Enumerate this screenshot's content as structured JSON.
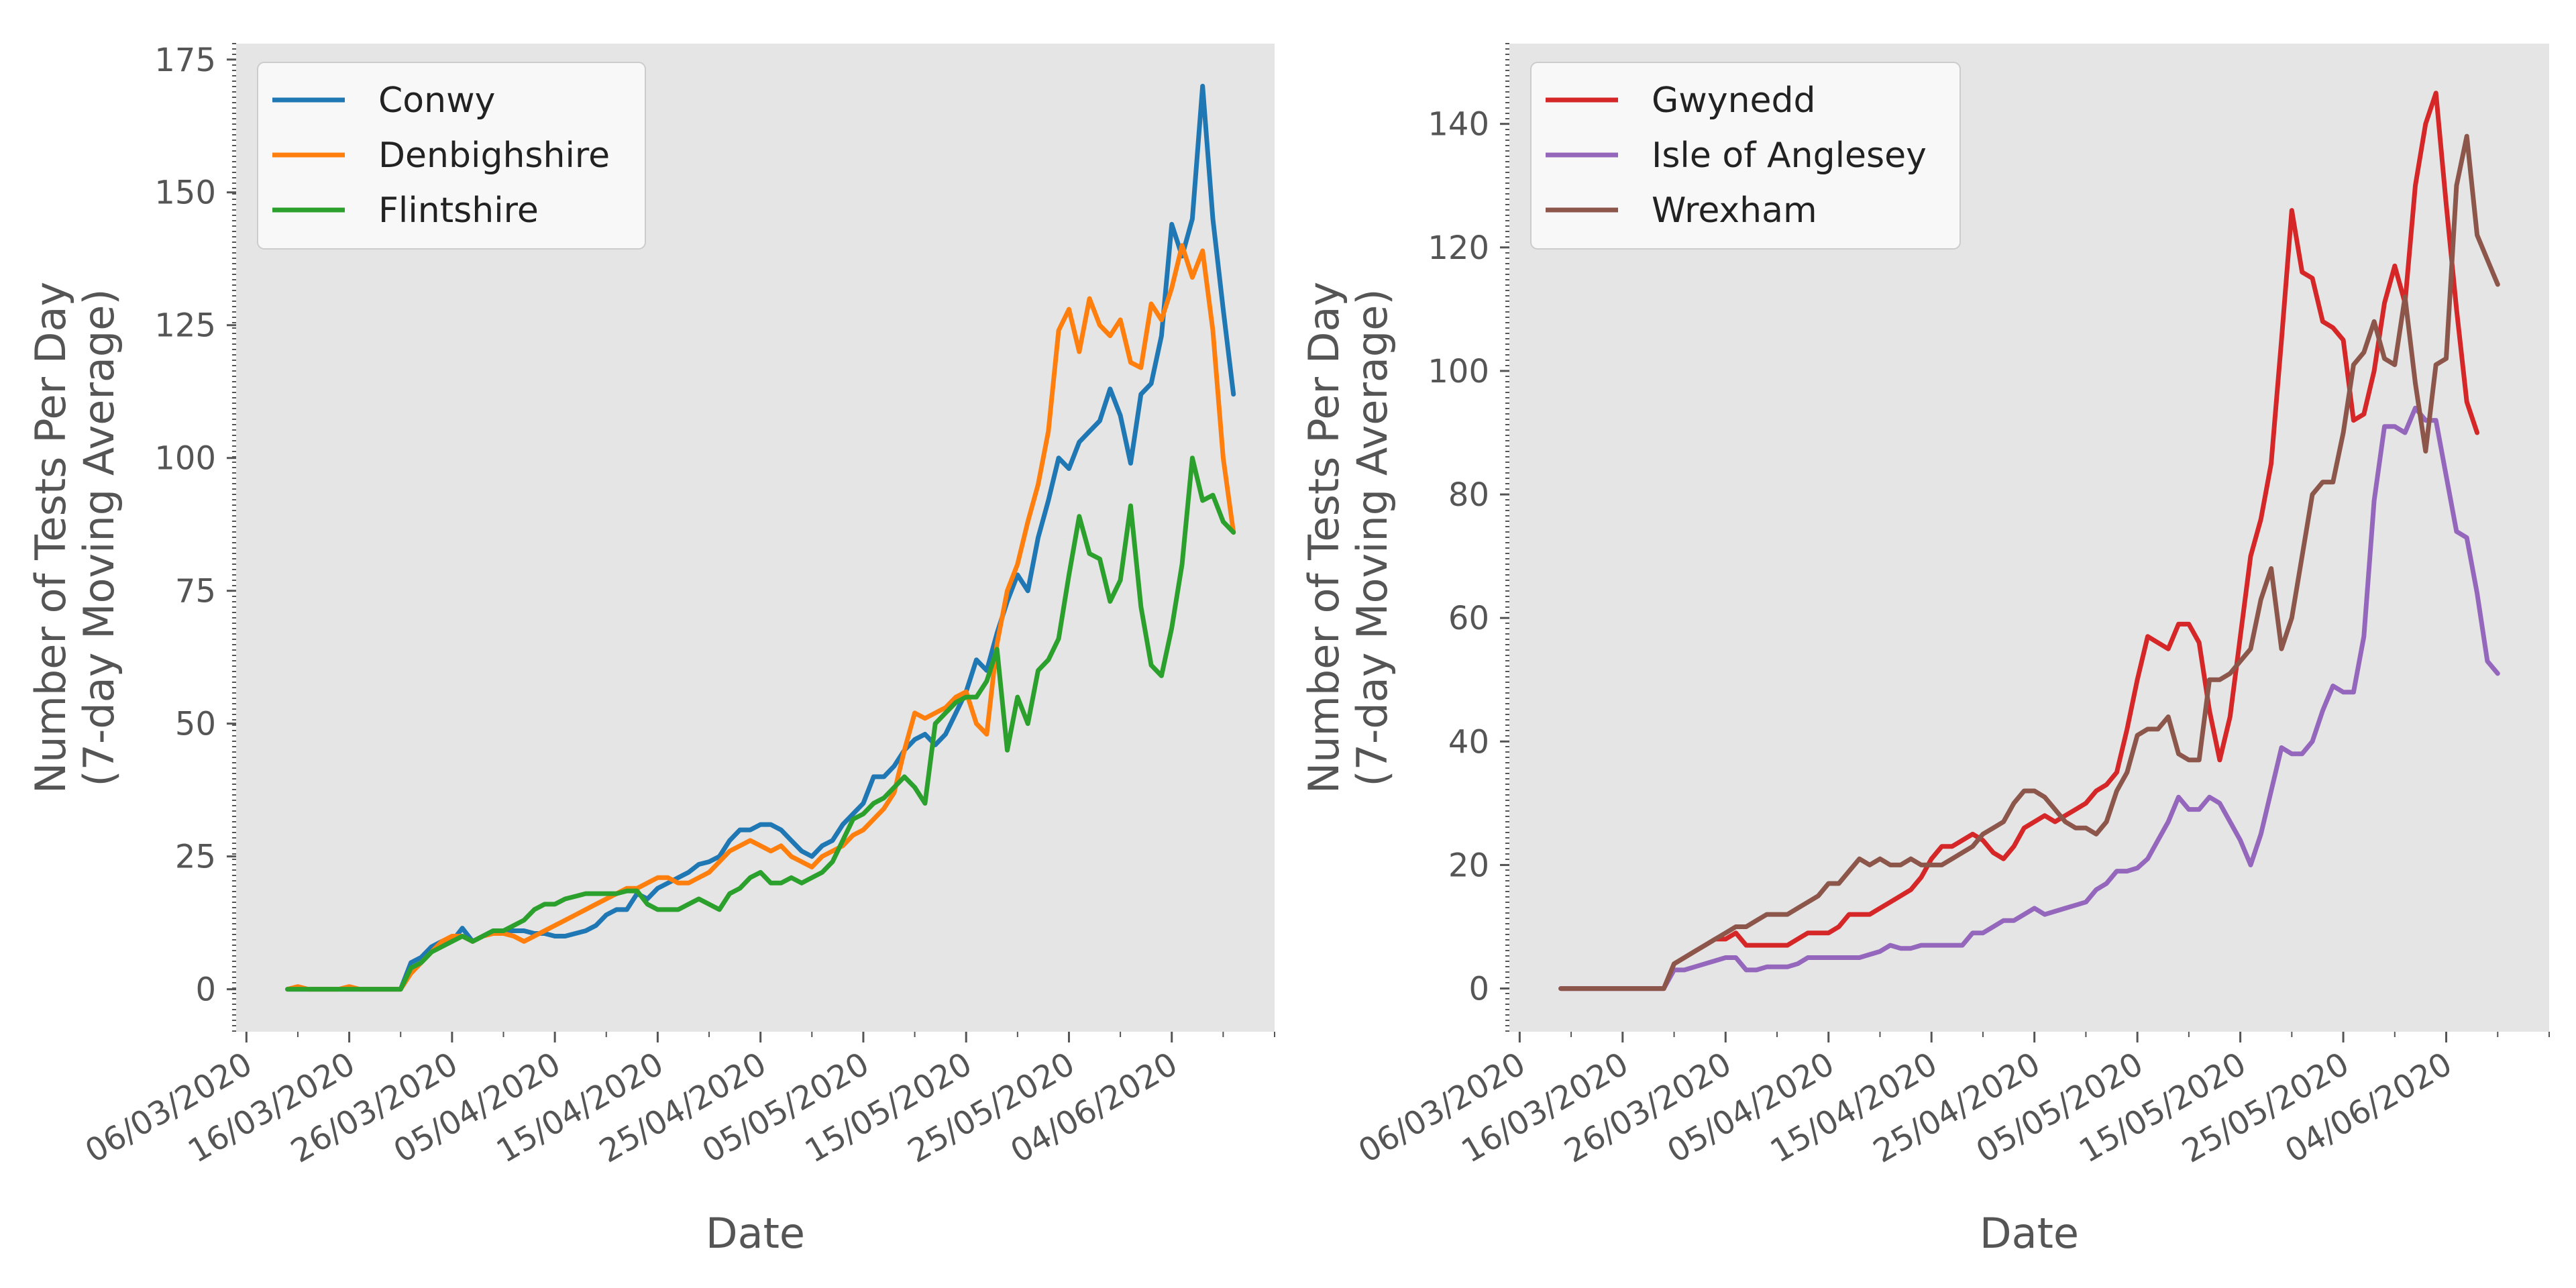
{
  "chart_data": [
    {
      "type": "line",
      "xlabel": "Date",
      "ylabel": "Number of Tests Per Day\n(7-day Moving Average)",
      "ylim": [
        -8,
        178
      ],
      "yticks": [
        0,
        25,
        50,
        75,
        100,
        125,
        150,
        175
      ],
      "xlim": [
        "2020-03-05",
        "2020-06-14"
      ],
      "xtick_labels": [
        "06/03/2020",
        "16/03/2020",
        "26/03/2020",
        "05/04/2020",
        "15/04/2020",
        "25/04/2020",
        "05/05/2020",
        "15/05/2020",
        "25/05/2020",
        "04/06/2020"
      ],
      "grid": false,
      "legend_position": "top-left",
      "start_date": "2020-03-10",
      "series": [
        {
          "name": "Conwy",
          "color": "#1f77b4",
          "values": [
            0,
            0,
            0,
            0,
            0,
            0,
            0,
            0,
            0,
            0,
            0,
            0,
            5,
            6,
            8,
            9,
            9,
            11.5,
            9,
            10,
            11,
            11,
            11,
            11,
            10.5,
            10.5,
            10,
            10,
            10.5,
            11,
            12,
            14,
            15,
            15,
            18,
            17,
            19,
            20,
            21,
            22,
            23.5,
            24,
            25,
            28,
            30,
            30,
            31,
            31,
            30,
            28,
            26,
            25,
            27,
            28,
            31,
            33,
            35,
            40,
            40,
            42,
            45,
            47,
            48,
            46,
            48,
            52,
            56,
            62,
            60,
            67,
            73,
            78,
            75,
            85,
            92,
            100,
            98,
            103,
            105,
            107,
            113,
            108,
            99,
            112,
            114,
            123,
            144,
            138,
            145,
            170,
            145,
            128,
            112
          ]
        },
        {
          "name": "Denbighshire",
          "color": "#ff7f0e",
          "values": [
            0,
            0.5,
            0,
            0,
            0,
            0,
            0.5,
            0,
            0,
            0,
            0,
            0,
            3,
            5,
            7,
            9,
            10,
            10,
            9,
            10,
            10.5,
            10.5,
            10,
            9,
            10,
            11,
            12,
            13,
            14,
            15,
            16,
            17,
            18,
            19,
            19,
            20,
            21,
            21,
            20,
            20,
            21,
            22,
            24,
            26,
            27,
            28,
            27,
            26,
            27,
            25,
            24,
            23,
            25,
            26,
            27,
            29,
            30,
            32,
            34,
            37,
            45,
            52,
            51,
            52,
            53,
            55,
            56,
            50,
            48,
            65,
            75,
            80,
            88,
            95,
            105,
            124,
            128,
            120,
            130,
            125,
            123,
            126,
            118,
            117,
            129,
            126,
            132,
            140,
            134,
            139,
            124,
            100,
            86
          ]
        },
        {
          "name": "Flintshire",
          "color": "#2ca02c",
          "values": [
            0,
            0,
            0,
            0,
            0,
            0,
            0,
            0,
            0,
            0,
            0,
            0,
            4,
            5,
            7,
            8,
            9,
            10,
            9,
            10,
            11,
            11,
            12,
            13,
            15,
            16,
            16,
            17,
            17.5,
            18,
            18,
            18,
            18,
            18.5,
            18.5,
            16,
            15,
            15,
            15,
            16,
            17,
            16,
            15,
            18,
            19,
            21,
            22,
            20,
            20,
            21,
            20,
            21,
            22,
            24,
            28,
            32,
            33,
            35,
            36,
            38,
            40,
            38,
            35,
            50,
            52,
            54,
            55,
            55,
            58,
            64,
            45,
            55,
            50,
            60,
            62,
            66,
            78,
            89,
            82,
            81,
            73,
            77,
            91,
            72,
            61,
            59,
            68,
            80,
            100,
            92,
            93,
            88,
            86
          ]
        }
      ]
    },
    {
      "type": "line",
      "xlabel": "Date",
      "ylabel": "Number of Tests Per Day\n(7-day Moving Average)",
      "ylim": [
        -7,
        153
      ],
      "yticks": [
        0,
        20,
        40,
        60,
        80,
        100,
        120,
        140
      ],
      "xlim": [
        "2020-03-05",
        "2020-06-14"
      ],
      "xtick_labels": [
        "06/03/2020",
        "16/03/2020",
        "26/03/2020",
        "05/04/2020",
        "15/04/2020",
        "25/04/2020",
        "05/05/2020",
        "15/05/2020",
        "25/05/2020",
        "04/06/2020"
      ],
      "grid": false,
      "legend_position": "top-left",
      "start_date": "2020-03-10",
      "series": [
        {
          "name": "Gwynedd",
          "color": "#d62728",
          "values": [
            0,
            0,
            0,
            0,
            0,
            0,
            0,
            0,
            0,
            0,
            0,
            4,
            5,
            6,
            7,
            8,
            8,
            9,
            7,
            7,
            7,
            7,
            7,
            8,
            9,
            9,
            9,
            10,
            12,
            12,
            12,
            13,
            14,
            15,
            16,
            18,
            21,
            23,
            23,
            24,
            25,
            24,
            22,
            21,
            23,
            26,
            27,
            28,
            27,
            28,
            29,
            30,
            32,
            33,
            35,
            42,
            50,
            57,
            56,
            55,
            59,
            59,
            56,
            45,
            37,
            44,
            57,
            70,
            76,
            85,
            105,
            126,
            116,
            115,
            108,
            107,
            105,
            92,
            93,
            100,
            111,
            117,
            111,
            130,
            140,
            145,
            127,
            110,
            95,
            90
          ]
        },
        {
          "name": "Isle of Anglesey",
          "color": "#9467bd",
          "values": [
            0,
            0,
            0,
            0,
            0,
            0,
            0,
            0,
            0,
            0,
            0,
            3,
            3,
            3.5,
            4,
            4.5,
            5,
            5,
            3,
            3,
            3.5,
            3.5,
            3.5,
            4,
            5,
            5,
            5,
            5,
            5,
            5,
            5.5,
            6,
            7,
            6.5,
            6.5,
            7,
            7,
            7,
            7,
            7,
            9,
            9,
            10,
            11,
            11,
            12,
            13,
            12,
            12.5,
            13,
            13.5,
            14,
            16,
            17,
            19,
            19,
            19.5,
            21,
            24,
            27,
            31,
            29,
            29,
            31,
            30,
            27,
            24,
            20,
            25,
            32,
            39,
            38,
            38,
            40,
            45,
            49,
            48,
            48,
            57,
            79,
            91,
            91,
            90,
            94,
            92,
            92,
            83,
            74,
            73,
            64,
            53,
            51
          ]
        },
        {
          "name": "Wrexham",
          "color": "#8c564b",
          "values": [
            0,
            0,
            0,
            0,
            0,
            0,
            0,
            0,
            0,
            0,
            0,
            4,
            5,
            6,
            7,
            8,
            9,
            10,
            10,
            11,
            12,
            12,
            12,
            13,
            14,
            15,
            17,
            17,
            19,
            21,
            20,
            21,
            20,
            20,
            21,
            20,
            20,
            20,
            21,
            22,
            23,
            25,
            26,
            27,
            30,
            32,
            32,
            31,
            29,
            27,
            26,
            26,
            25,
            27,
            32,
            35,
            41,
            42,
            42,
            44,
            38,
            37,
            37,
            50,
            50,
            51,
            53,
            55,
            63,
            68,
            55,
            60,
            70,
            80,
            82,
            82,
            90,
            101,
            103,
            108,
            102,
            101,
            112,
            98,
            87,
            101,
            102,
            130,
            138,
            122,
            118,
            114
          ]
        }
      ]
    }
  ]
}
